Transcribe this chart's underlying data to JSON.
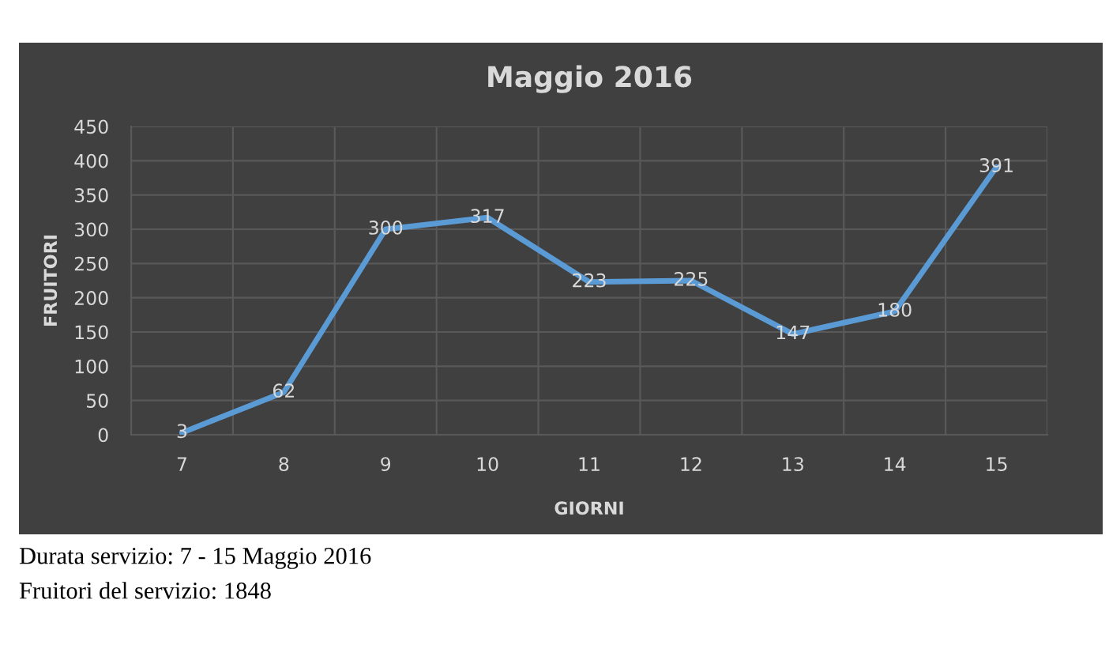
{
  "chart_data": {
    "type": "line",
    "title": "Maggio 2016",
    "xlabel": "GIORNI",
    "ylabel": "FRUITORI",
    "categories": [
      "7",
      "8",
      "9",
      "10",
      "11",
      "12",
      "13",
      "14",
      "15"
    ],
    "series": [
      {
        "color": "#5b9bd5",
        "values": [
          3,
          62,
          300,
          317,
          223,
          225,
          147,
          180,
          391
        ]
      }
    ],
    "ylim": [
      0,
      450
    ],
    "yticks": [
      0,
      50,
      100,
      150,
      200,
      250,
      300,
      350,
      400,
      450
    ],
    "grid": true,
    "data_labels": true,
    "marker": "none",
    "line_style": "solid",
    "annotations": [
      "Durata servizio: 7 - 15 Maggio 2016",
      "Fruitori del servizio: 1848"
    ]
  }
}
